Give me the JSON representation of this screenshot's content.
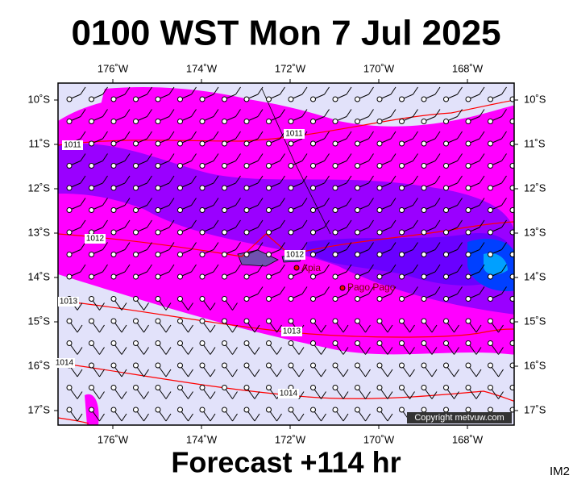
{
  "title": "0100 WST Mon 7 Jul 2025",
  "map": {
    "lon_ticks": [
      {
        "value": -176,
        "label": "176˚W"
      },
      {
        "value": -174,
        "label": "174˚W"
      },
      {
        "value": -172,
        "label": "172˚W"
      },
      {
        "value": -170,
        "label": "170˚W"
      },
      {
        "value": -168,
        "label": "168˚W"
      }
    ],
    "lat_ticks": [
      {
        "value": -10,
        "label": "10˚S"
      },
      {
        "value": -11,
        "label": "11˚S"
      },
      {
        "value": -12,
        "label": "12˚S"
      },
      {
        "value": -13,
        "label": "13˚S"
      },
      {
        "value": -14,
        "label": "14˚S"
      },
      {
        "value": -15,
        "label": "15˚S"
      },
      {
        "value": -16,
        "label": "16˚S"
      },
      {
        "value": -17,
        "label": "17˚S"
      }
    ],
    "isobar_labels": [
      "1011",
      "1011",
      "1012",
      "1012",
      "1013",
      "1013",
      "1014",
      "1014"
    ],
    "places": [
      "Apia",
      "Pago Pago"
    ],
    "copyright": "Copyright metvuw.com"
  },
  "footer": "Forecast +114 hr",
  "image_id": "IM2"
}
